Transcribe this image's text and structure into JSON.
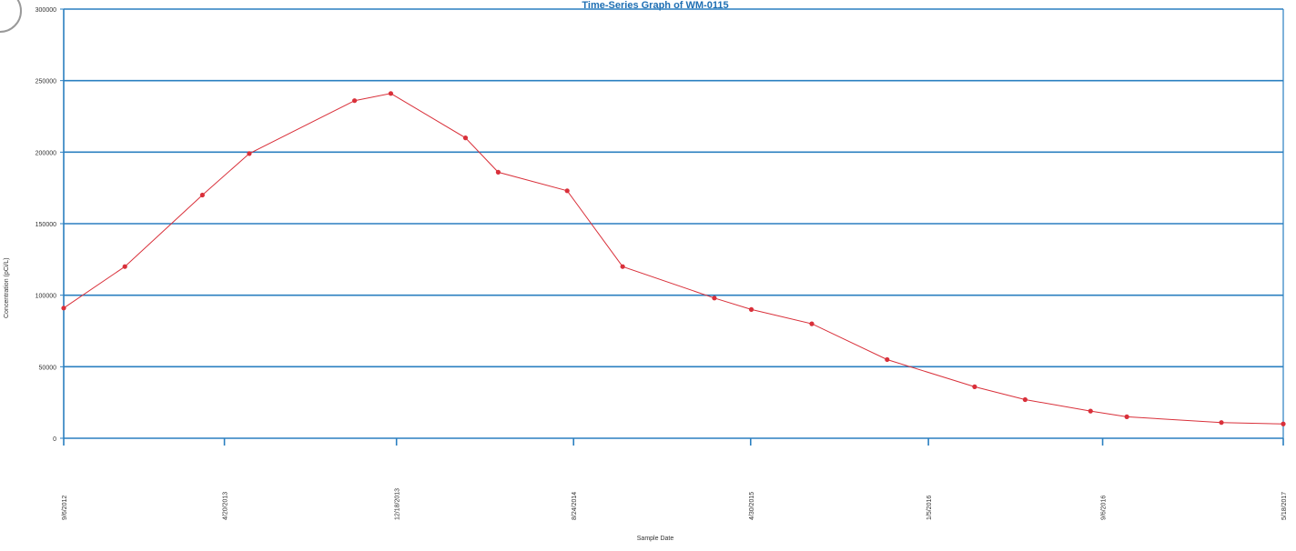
{
  "chart_data": {
    "type": "line",
    "title": "Time-Series Graph of WM-0115",
    "xlabel": "Sample Date",
    "ylabel": "Concentration (pCi/L)",
    "ylim": [
      0,
      300000
    ],
    "y_ticks": [
      0,
      50000,
      100000,
      150000,
      200000,
      250000,
      300000
    ],
    "y_tick_labels": [
      "0",
      "50000",
      "100000",
      "150000",
      "200000",
      "250000",
      "300000"
    ],
    "x_ticks": [
      "2012-09-06",
      "2013-04-20",
      "2013-12-18",
      "2014-08-24",
      "2015-04-30",
      "2016-01-05",
      "2016-09-06",
      "2017-05-18"
    ],
    "x_tick_labels": [
      "9/6/2012",
      "4/20/2013",
      "12/18/2013",
      "8/24/2014",
      "4/30/2015",
      "1/5/2016",
      "9/6/2016",
      "5/18/2017"
    ],
    "grid": true,
    "series": [
      {
        "color": "#d9303a",
        "x": [
          "2012-09-06",
          "2012-12-01",
          "2013-03-20",
          "2013-05-25",
          "2013-10-20",
          "2013-12-10",
          "2014-03-25",
          "2014-05-10",
          "2014-08-15",
          "2014-11-01",
          "2015-03-10",
          "2015-05-01",
          "2015-07-25",
          "2015-11-08",
          "2016-03-10",
          "2016-05-20",
          "2016-08-20",
          "2016-10-10",
          "2017-02-20",
          "2017-05-18"
        ],
        "values": [
          91000,
          120000,
          170000,
          199000,
          236000,
          241000,
          210000,
          186000,
          173000,
          120000,
          98000,
          90000,
          80000,
          55000,
          36000,
          27000,
          19000,
          15000,
          11000,
          10000
        ]
      }
    ]
  }
}
